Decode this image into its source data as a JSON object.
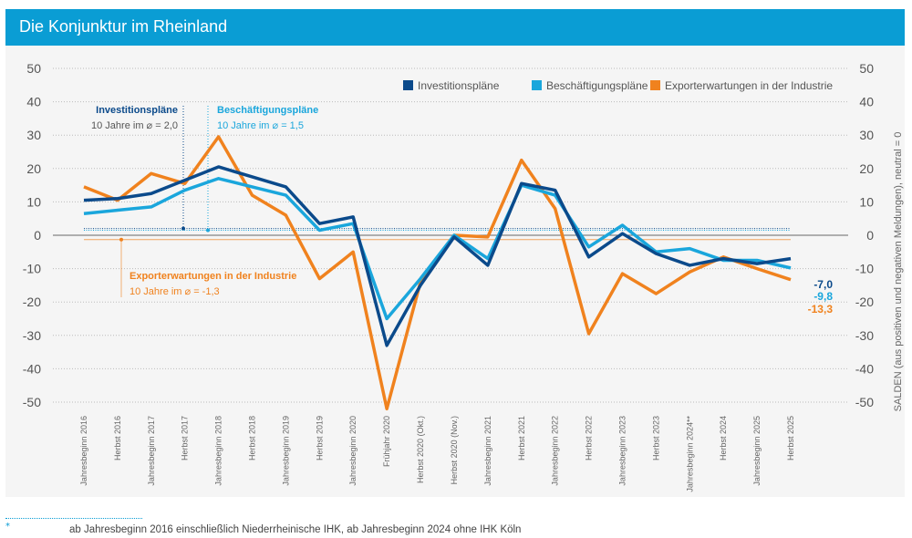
{
  "header": {
    "title": "Die Konjunktur im Rheinland"
  },
  "footnote": {
    "marker": "*",
    "text": "ab Jahresbeginn 2016 einschließlich Niederrheinische IHK, ab Jahresbeginn 2024 ohne IHK Köln"
  },
  "chart_data": {
    "type": "line",
    "title": "Die Konjunktur im Rheinland",
    "ylabel": "SALDEN (aus positiven und negativen Meldungen), neutral = 0",
    "ylim": [
      -50,
      50
    ],
    "yticks": [
      50,
      40,
      30,
      20,
      10,
      0,
      -10,
      -20,
      -30,
      -40,
      -50
    ],
    "grid": true,
    "legend": "top-right",
    "categories": [
      "Jahresbeginn 2016",
      "Herbst 2016",
      "Jahresbeginn 2017",
      "Herbst 2017",
      "Jahresbeginn 2018",
      "Herbst 2018",
      "Jahresbeginn 2019",
      "Herbst 2019",
      "Jahresbeginn 2020",
      "Frühjahr 2020",
      "Herbst 2020 (Okt.)",
      "Herbst 2020 (Nov.)",
      "Jahresbeginn 2021",
      "Herbst 2021",
      "Jahresbeginn 2022",
      "Herbst 2022",
      "Jahresbeginn 2023",
      "Herbst 2023",
      "Jahresbeginn 2024**",
      "Herbst 2024",
      "Jahresbeginn 2025",
      "Herbst 2025"
    ],
    "series": [
      {
        "name": "Investitionspläne",
        "color": "#0b4a8b",
        "values": [
          10.5,
          11,
          12.5,
          16.5,
          20.5,
          17.5,
          14.5,
          3.5,
          5.5,
          -33,
          -15,
          -0.5,
          -9,
          15.5,
          13.5,
          -6.5,
          0.5,
          -5.5,
          -9,
          -7,
          -8.5,
          -7.0
        ],
        "end_label": "-7,0",
        "average": 2.0,
        "avg_title": "Investitionspläne",
        "avg_text": "10 Jahre im ⌀  = 2,0"
      },
      {
        "name": "Beschäftigungspläne",
        "color": "#1aa6dc",
        "values": [
          6.5,
          7.5,
          8.5,
          13.5,
          17,
          14.5,
          12,
          1.5,
          3.5,
          -25,
          -13,
          0,
          -7,
          15,
          12,
          -3.5,
          3,
          -5,
          -4,
          -7.5,
          -7.5,
          -9.8
        ],
        "end_label": "-9,8",
        "average": 1.5,
        "avg_title": "Beschäftigungspläne",
        "avg_text": "10 Jahre im ⌀  = 1,5"
      },
      {
        "name": "Exporterwartungen in der Industrie",
        "color": "#f0821e",
        "values": [
          14.5,
          10.5,
          18.5,
          15.5,
          29.5,
          12,
          6,
          -13,
          -5,
          -52,
          -14,
          0,
          -0.5,
          22.5,
          8,
          -29.5,
          -11.5,
          -17.5,
          -11,
          -6.5,
          -10,
          -13.3
        ],
        "end_label": "-13,3",
        "average": -1.3,
        "avg_title": "Exporterwartungen in der Industrie",
        "avg_text": "10 Jahre im ⌀  = -1,3"
      }
    ]
  }
}
